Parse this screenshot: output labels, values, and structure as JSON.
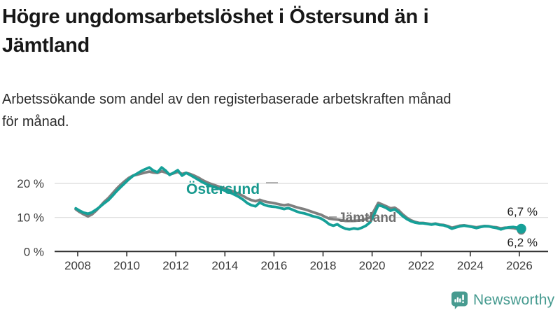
{
  "page": {
    "title": "Högre ungdomsarbetslöshet i Östersund än i Jämtland",
    "subtitle": "Arbetssökande som andel av den registerbaserade arbetskraften månad för månad.",
    "background_color": "#ffffff"
  },
  "branding": {
    "logo_text": "Newsworthy",
    "logo_color": "#459a8f",
    "logo_icon": "bar-chart-speech-bubble-icon"
  },
  "chart_data": {
    "type": "line",
    "title": "Högre ungdomsarbetslöshet i Östersund än i Jämtland",
    "subtitle": "Arbetssökande som andel av den registerbaserade arbetskraften månad för månad.",
    "xlabel": "",
    "ylabel": "",
    "unit": "%",
    "decimal_separator": ",",
    "xlim": [
      2007.6,
      2027.0
    ],
    "ylim": [
      0,
      26
    ],
    "grid": "horizontal",
    "legend": "inline-labels",
    "xticks": [
      2008,
      2010,
      2012,
      2014,
      2016,
      2018,
      2020,
      2022,
      2024,
      2026
    ],
    "yticks": [
      {
        "value": 0,
        "label": "0 %"
      },
      {
        "value": 10,
        "label": "10 %"
      },
      {
        "value": 20,
        "label": "20 %"
      }
    ],
    "x": [
      2007.92,
      2008.08,
      2008.25,
      2008.42,
      2008.58,
      2008.75,
      2008.92,
      2009.08,
      2009.25,
      2009.42,
      2009.58,
      2009.75,
      2009.92,
      2010.08,
      2010.25,
      2010.42,
      2010.58,
      2010.75,
      2010.92,
      2011.08,
      2011.25,
      2011.42,
      2011.58,
      2011.75,
      2011.92,
      2012.08,
      2012.25,
      2012.42,
      2012.58,
      2012.75,
      2012.92,
      2013.08,
      2013.25,
      2013.42,
      2013.58,
      2013.75,
      2013.92,
      2014.08,
      2014.25,
      2014.42,
      2014.58,
      2014.75,
      2014.92,
      2015.08,
      2015.25,
      2015.42,
      2015.58,
      2015.75,
      2015.92,
      2016.08,
      2016.25,
      2016.42,
      2016.58,
      2016.75,
      2016.92,
      2017.08,
      2017.25,
      2017.42,
      2017.58,
      2017.75,
      2017.92,
      2018.08,
      2018.25,
      2018.42,
      2018.58,
      2018.75,
      2018.92,
      2019.08,
      2019.25,
      2019.42,
      2019.58,
      2019.75,
      2019.92,
      2020.08,
      2020.25,
      2020.42,
      2020.58,
      2020.75,
      2020.92,
      2021.08,
      2021.25,
      2021.42,
      2021.58,
      2021.75,
      2021.92,
      2022.08,
      2022.25,
      2022.42,
      2022.58,
      2022.75,
      2022.92,
      2023.08,
      2023.25,
      2023.42,
      2023.58,
      2023.75,
      2023.92,
      2024.08,
      2024.25,
      2024.42,
      2024.58,
      2024.75,
      2024.92,
      2025.08,
      2025.25,
      2025.42,
      2025.58,
      2025.75,
      2025.92,
      2026.08
    ],
    "series": [
      {
        "id": "ostersund",
        "name": "Östersund",
        "color": "#16a098",
        "end_value": 6.7,
        "end_label": "6,7 %",
        "values": [
          12.7,
          12.0,
          11.4,
          11.1,
          11.5,
          12.3,
          13.2,
          14.2,
          15.1,
          16.4,
          17.7,
          18.9,
          20.1,
          21.2,
          22.2,
          22.9,
          23.6,
          24.2,
          24.7,
          23.8,
          23.3,
          24.7,
          23.8,
          22.5,
          23.2,
          23.9,
          22.3,
          23.1,
          22.5,
          21.8,
          21.1,
          20.4,
          19.8,
          19.3,
          18.9,
          18.5,
          18.1,
          17.7,
          17.2,
          16.6,
          16.0,
          15.2,
          14.2,
          13.6,
          13.3,
          14.4,
          13.8,
          13.4,
          13.2,
          13.1,
          12.8,
          12.5,
          12.8,
          12.3,
          11.8,
          11.4,
          11.2,
          10.8,
          10.4,
          10.1,
          9.7,
          9.0,
          8.0,
          7.6,
          8.0,
          7.2,
          6.7,
          6.5,
          6.8,
          6.6,
          7.0,
          7.6,
          8.6,
          10.8,
          13.6,
          13.3,
          12.8,
          12.0,
          12.4,
          11.5,
          10.4,
          9.5,
          8.9,
          8.5,
          8.3,
          8.3,
          8.1,
          7.9,
          8.1,
          7.8,
          7.7,
          7.3,
          6.7,
          7.1,
          7.4,
          7.6,
          7.4,
          7.2,
          6.9,
          7.2,
          7.4,
          7.4,
          7.1,
          6.9,
          6.5,
          6.9,
          7.1,
          7.2,
          7.0,
          6.7
        ]
      },
      {
        "id": "jamtland",
        "name": "Jämtland",
        "color": "#7f7f7f",
        "end_value": 6.2,
        "end_label": "6,2 %",
        "values": [
          12.4,
          11.6,
          10.9,
          10.3,
          10.9,
          12.0,
          13.3,
          14.6,
          15.7,
          17.1,
          18.4,
          19.6,
          20.7,
          21.6,
          22.3,
          22.6,
          22.9,
          23.2,
          23.5,
          23.2,
          23.1,
          23.6,
          23.2,
          22.7,
          23.0,
          23.4,
          22.8,
          23.1,
          22.8,
          22.3,
          21.7,
          21.0,
          20.4,
          19.9,
          19.5,
          19.1,
          18.7,
          18.3,
          17.9,
          17.4,
          16.9,
          16.3,
          15.6,
          15.1,
          14.8,
          15.2,
          14.8,
          14.5,
          14.3,
          14.1,
          13.8,
          13.6,
          13.8,
          13.4,
          13.0,
          12.7,
          12.4,
          12.0,
          11.6,
          11.2,
          10.8,
          10.2,
          9.7,
          9.5,
          9.4,
          9.2,
          9.0,
          9.0,
          9.0,
          9.1,
          9.2,
          9.5,
          10.1,
          12.0,
          14.3,
          13.8,
          13.3,
          12.7,
          12.9,
          12.1,
          10.9,
          9.9,
          9.2,
          8.7,
          8.4,
          8.4,
          8.2,
          8.0,
          8.2,
          7.9,
          7.8,
          7.5,
          7.0,
          7.3,
          7.6,
          7.7,
          7.5,
          7.3,
          7.1,
          7.3,
          7.5,
          7.4,
          7.2,
          7.1,
          6.8,
          7.0,
          7.0,
          6.9,
          6.6,
          6.2
        ]
      }
    ]
  }
}
